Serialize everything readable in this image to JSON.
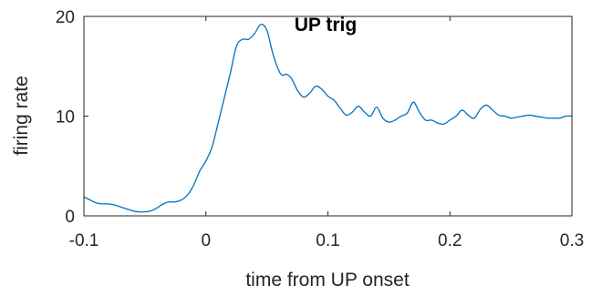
{
  "chart_data": {
    "type": "line",
    "title": "UP trig",
    "xlabel": "time from UP onset",
    "ylabel": "firing rate",
    "xlim": [
      -0.1,
      0.3
    ],
    "ylim": [
      0,
      20
    ],
    "xticks": [
      "-0.1",
      "0",
      "0.1",
      "0.2",
      "0.3"
    ],
    "yticks": [
      "0",
      "10",
      "20"
    ],
    "grid": false,
    "line_color": "#0072BD",
    "series": [
      {
        "x": [
          -0.1,
          -0.095,
          -0.09,
          -0.085,
          -0.08,
          -0.075,
          -0.07,
          -0.065,
          -0.06,
          -0.055,
          -0.05,
          -0.045,
          -0.04,
          -0.035,
          -0.03,
          -0.025,
          -0.02,
          -0.015,
          -0.01,
          -0.005,
          0,
          0.005,
          0.01,
          0.015,
          0.02,
          0.025,
          0.03,
          0.035,
          0.04,
          0.045,
          0.05,
          0.055,
          0.06,
          0.063,
          0.066,
          0.07,
          0.075,
          0.08,
          0.085,
          0.09,
          0.095,
          0.1,
          0.105,
          0.11,
          0.115,
          0.12,
          0.125,
          0.13,
          0.135,
          0.14,
          0.145,
          0.15,
          0.155,
          0.16,
          0.165,
          0.17,
          0.175,
          0.18,
          0.185,
          0.19,
          0.195,
          0.2,
          0.205,
          0.21,
          0.215,
          0.22,
          0.225,
          0.23,
          0.235,
          0.24,
          0.245,
          0.25,
          0.255,
          0.26,
          0.265,
          0.27,
          0.275,
          0.28,
          0.285,
          0.29,
          0.295,
          0.3
        ],
        "y": [
          1.9,
          1.6,
          1.3,
          1.2,
          1.2,
          1.1,
          0.9,
          0.7,
          0.5,
          0.4,
          0.4,
          0.5,
          0.8,
          1.2,
          1.4,
          1.4,
          1.6,
          2.1,
          3.1,
          4.5,
          5.5,
          6.9,
          9.3,
          11.8,
          14.3,
          17.0,
          17.7,
          17.7,
          18.3,
          19.2,
          18.6,
          16.2,
          14.5,
          14.1,
          14.2,
          13.8,
          12.6,
          11.9,
          12.3,
          13.0,
          12.7,
          12.0,
          11.6,
          10.8,
          10.1,
          10.4,
          11.0,
          10.4,
          10.0,
          10.9,
          9.8,
          9.4,
          9.6,
          10.0,
          10.3,
          11.4,
          10.4,
          9.6,
          9.6,
          9.3,
          9.2,
          9.6,
          10.0,
          10.6,
          10.1,
          9.8,
          10.7,
          11.1,
          10.6,
          10.1,
          10.0,
          9.8,
          9.9,
          10.0,
          10.1,
          10.0,
          9.9,
          9.8,
          9.8,
          9.8,
          10.0,
          10.0
        ]
      }
    ]
  }
}
